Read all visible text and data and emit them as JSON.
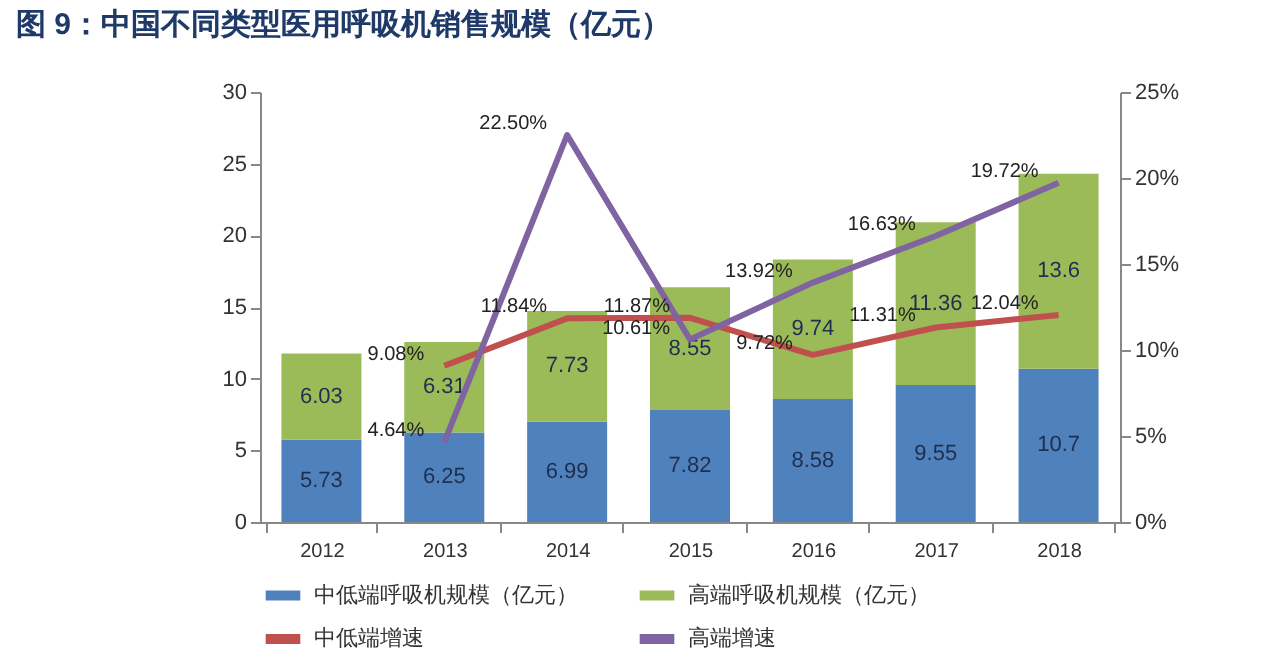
{
  "chart_data": {
    "type": "bar",
    "title": "图 9：中国不同类型医用呼吸机销售规模（亿元）",
    "categories": [
      "2012",
      "2013",
      "2014",
      "2015",
      "2016",
      "2017",
      "2018"
    ],
    "series": [
      {
        "name": "中低端呼吸机规模（亿元）",
        "type": "bar",
        "color": "#4f81bd",
        "values": [
          5.73,
          6.25,
          6.99,
          7.82,
          8.58,
          9.55,
          10.7
        ]
      },
      {
        "name": "高端呼吸机规模（亿元）",
        "type": "bar",
        "color": "#9bbb59",
        "values": [
          6.03,
          6.31,
          7.73,
          8.55,
          9.74,
          11.36,
          13.6
        ]
      },
      {
        "name": "中低端增速",
        "type": "line",
        "axis": "y2",
        "color": "#c0504d",
        "values": [
          null,
          9.08,
          11.84,
          11.87,
          9.72,
          11.31,
          12.04
        ],
        "value_labels": [
          null,
          "9.08%",
          "11.84%",
          "11.87%",
          "9.72%",
          "11.31%",
          "12.04%"
        ]
      },
      {
        "name": "高端增速",
        "type": "line",
        "axis": "y2",
        "color": "#8064a2",
        "values": [
          null,
          4.64,
          22.5,
          10.61,
          13.92,
          16.63,
          19.72
        ],
        "value_labels": [
          null,
          "4.64%",
          "22.50%",
          "10.61%",
          "13.92%",
          "16.63%",
          "19.72%"
        ]
      }
    ],
    "stacked": true,
    "data_labels": true,
    "ylim": [
      0,
      30
    ],
    "yticks": [
      0,
      5,
      10,
      15,
      20,
      25,
      30
    ],
    "y2lim": [
      0,
      25
    ],
    "y2ticks": [
      {
        "value": 0,
        "label": "0%"
      },
      {
        "value": 5,
        "label": "5%"
      },
      {
        "value": 10,
        "label": "10%"
      },
      {
        "value": 15,
        "label": "15%"
      },
      {
        "value": 20,
        "label": "20%"
      },
      {
        "value": 25,
        "label": "25%"
      }
    ],
    "legend": "bottom"
  }
}
